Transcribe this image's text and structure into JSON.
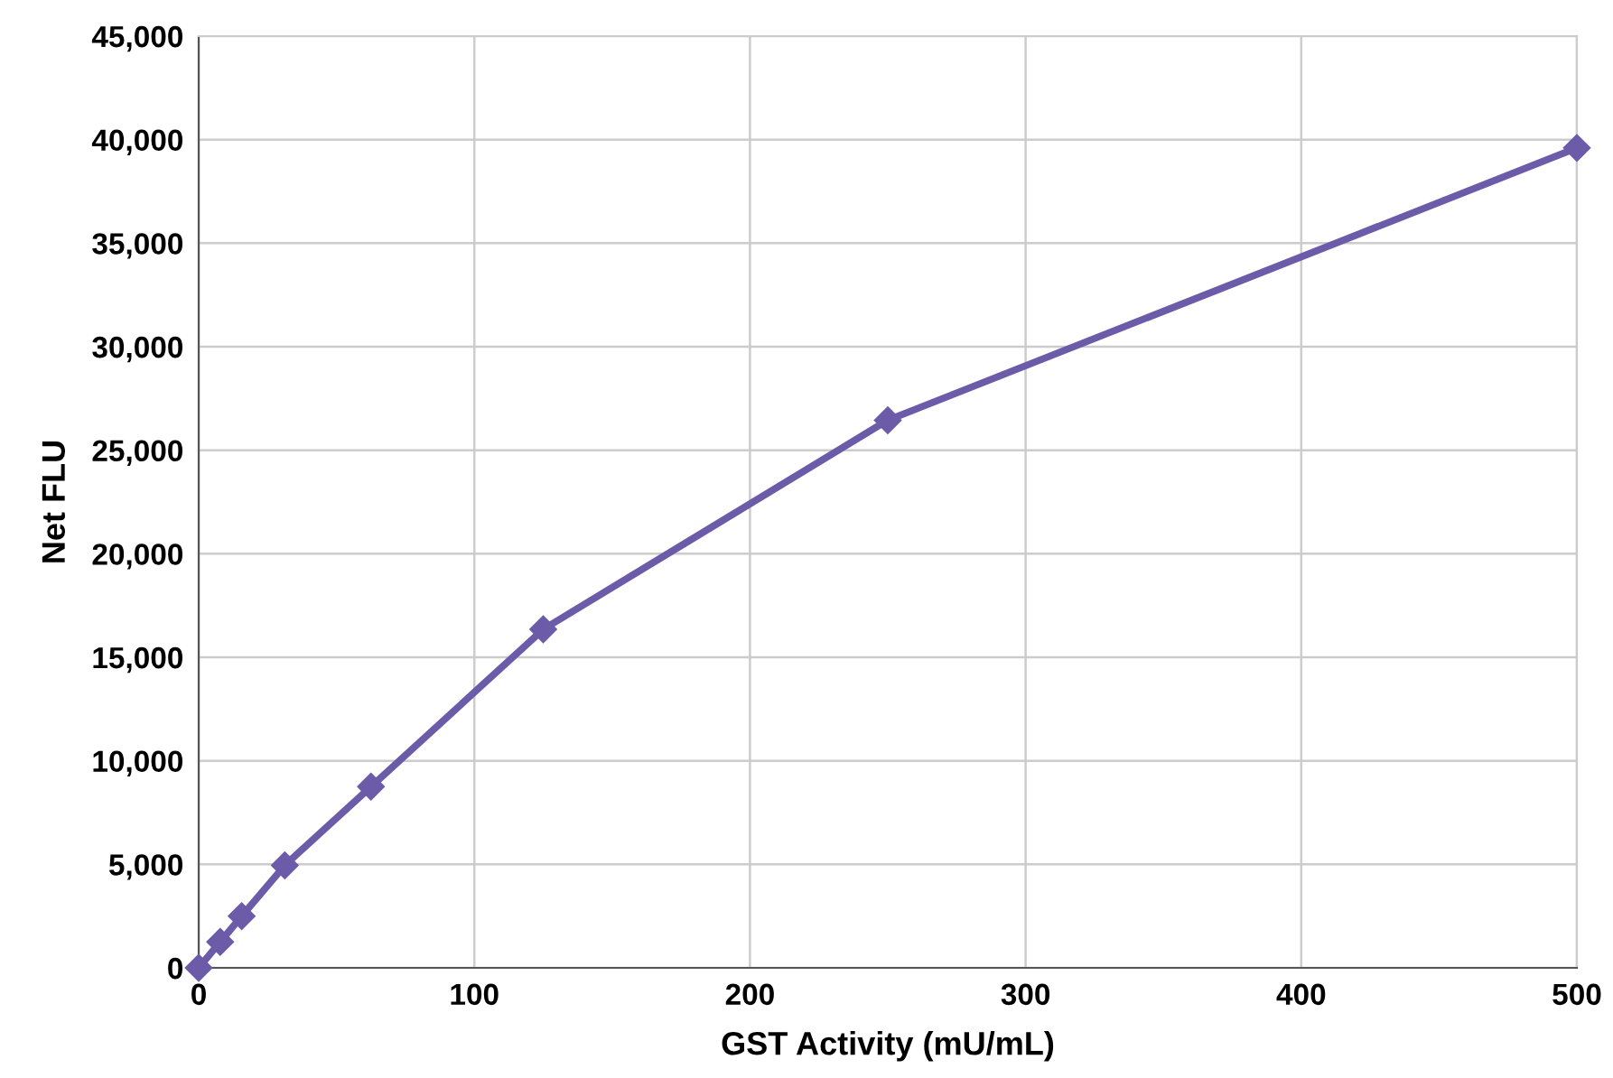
{
  "chart_data": {
    "type": "line",
    "xlabel": "GST Activity (mU/mL)",
    "ylabel": "Net FLU",
    "x": [
      0,
      7.8,
      15.6,
      31.25,
      62.5,
      125,
      250,
      500
    ],
    "series": [
      {
        "color": "#6b5ba8",
        "values": [
          0,
          1250,
          2500,
          4950,
          8750,
          16350,
          26450,
          39600
        ]
      }
    ],
    "xlim": [
      0,
      500
    ],
    "xticks": [
      0,
      100,
      200,
      300,
      400,
      500
    ],
    "ylim": [
      0,
      45000
    ],
    "yticks": [
      {
        "value": 0,
        "label": "0"
      },
      {
        "value": 5000,
        "label": "5,000"
      },
      {
        "value": 10000,
        "label": "10,000"
      },
      {
        "value": 15000,
        "label": "15,000"
      },
      {
        "value": 20000,
        "label": "20,000"
      },
      {
        "value": 25000,
        "label": "25,000"
      },
      {
        "value": 30000,
        "label": "30,000"
      },
      {
        "value": 35000,
        "label": "35,000"
      },
      {
        "value": 40000,
        "label": "40,000"
      },
      {
        "value": 45000,
        "label": "45,000"
      }
    ],
    "grid": true,
    "marker": "diamond",
    "line_style": "solid"
  }
}
